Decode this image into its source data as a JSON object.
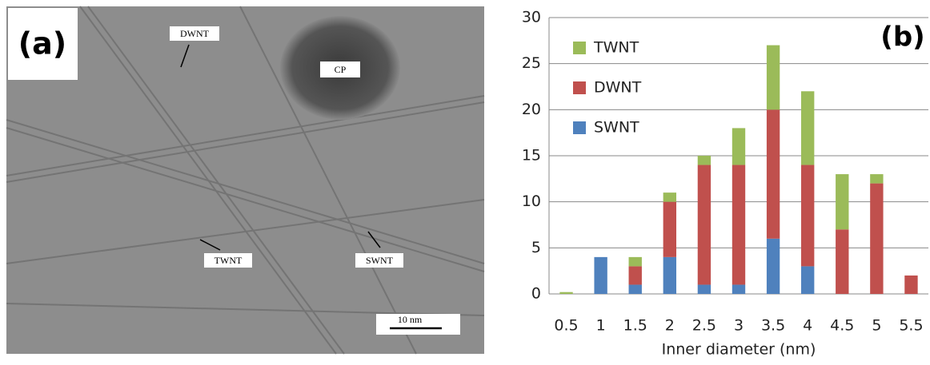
{
  "image": {
    "panel_label": "(a)",
    "labels": [
      "DWNT",
      "CP",
      "TWNT",
      "SWNT"
    ],
    "scale_bar": "10 nm"
  },
  "chart_data": {
    "type": "stacked_bar",
    "panel_label": "(b)",
    "x_label": "Inner diameter  (nm)",
    "categories": [
      "0.5",
      "1",
      "1.5",
      "2",
      "2.5",
      "3",
      "3.5",
      "4",
      "4.5",
      "5",
      "5.5"
    ],
    "series": [
      {
        "name": "SWNT",
        "color": "#4f81bd",
        "values": [
          0,
          4,
          1,
          4,
          1,
          1,
          6,
          3,
          0,
          0,
          0
        ]
      },
      {
        "name": "DWNT",
        "color": "#c0504d",
        "values": [
          0,
          0,
          2,
          6,
          13,
          13,
          14,
          11,
          7,
          12,
          2
        ]
      },
      {
        "name": "TWNT",
        "color": "#9bbb59",
        "values": [
          0.2,
          0,
          1,
          1,
          1,
          4,
          7,
          8,
          6,
          1,
          0
        ]
      }
    ],
    "ylim": [
      0,
      30
    ],
    "yticks": [
      0,
      5,
      10,
      15,
      20,
      25,
      30
    ],
    "grid": true,
    "legend": "upper left"
  }
}
